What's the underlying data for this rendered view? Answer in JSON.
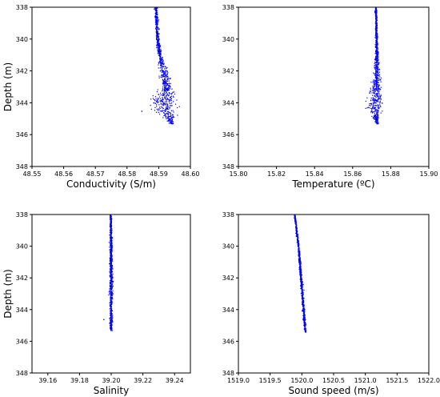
{
  "chart_data": [
    {
      "type": "scatter",
      "xlabel": "Conductivity (S/m)",
      "ylabel": "Depth (m)",
      "xlim": [
        48.55,
        48.6
      ],
      "ylim": [
        348,
        338
      ],
      "xticks": [
        "48.55",
        "48.56",
        "48.57",
        "48.58",
        "48.59",
        "48.60"
      ],
      "yticks": [
        "338",
        "340",
        "342",
        "344",
        "346",
        "348"
      ],
      "color": "#0000ff",
      "profile": [
        {
          "depth": 338.0,
          "x": 48.589,
          "spread": 0.0003
        },
        {
          "depth": 339.0,
          "x": 48.5892,
          "spread": 0.0004
        },
        {
          "depth": 340.0,
          "x": 48.5895,
          "spread": 0.0004
        },
        {
          "depth": 341.0,
          "x": 48.5902,
          "spread": 0.0005
        },
        {
          "depth": 341.5,
          "x": 48.5908,
          "spread": 0.0008
        },
        {
          "depth": 342.0,
          "x": 48.5915,
          "spread": 0.001
        },
        {
          "depth": 343.0,
          "x": 48.5925,
          "spread": 0.0012
        },
        {
          "depth": 343.5,
          "x": 48.5918,
          "spread": 0.0025
        },
        {
          "depth": 344.0,
          "x": 48.5912,
          "spread": 0.0032
        },
        {
          "depth": 344.5,
          "x": 48.592,
          "spread": 0.0025
        },
        {
          "depth": 345.0,
          "x": 48.5935,
          "spread": 0.001
        },
        {
          "depth": 345.3,
          "x": 48.594,
          "spread": 0.0006
        }
      ],
      "outliers": [
        {
          "x": 48.5845,
          "depth": 344.5
        }
      ]
    },
    {
      "type": "scatter",
      "xlabel": "Temperature (ºC)",
      "ylabel": "",
      "xlim": [
        15.8,
        15.9
      ],
      "ylim": [
        348,
        338
      ],
      "xticks": [
        "15.80",
        "15.82",
        "15.84",
        "15.86",
        "15.88",
        "15.90"
      ],
      "yticks": [
        "338",
        "340",
        "342",
        "344",
        "346",
        "348"
      ],
      "color": "#0000ff",
      "profile": [
        {
          "depth": 338.0,
          "x": 15.872,
          "spread": 0.0003
        },
        {
          "depth": 339.0,
          "x": 15.8722,
          "spread": 0.0004
        },
        {
          "depth": 340.0,
          "x": 15.8723,
          "spread": 0.0005
        },
        {
          "depth": 341.0,
          "x": 15.8724,
          "spread": 0.0007
        },
        {
          "depth": 342.0,
          "x": 15.8725,
          "spread": 0.0012
        },
        {
          "depth": 343.0,
          "x": 15.8722,
          "spread": 0.0018
        },
        {
          "depth": 343.7,
          "x": 15.8715,
          "spread": 0.003
        },
        {
          "depth": 344.3,
          "x": 15.8712,
          "spread": 0.003
        },
        {
          "depth": 345.0,
          "x": 15.8722,
          "spread": 0.001
        },
        {
          "depth": 345.3,
          "x": 15.8725,
          "spread": 0.0006
        }
      ],
      "outliers": []
    },
    {
      "type": "scatter",
      "xlabel": "Salinity",
      "ylabel": "Depth (m)",
      "xlim": [
        39.15,
        39.25
      ],
      "ylim": [
        348,
        338
      ],
      "xticks": [
        "39.16",
        "39.18",
        "39.20",
        "39.22",
        "39.24"
      ],
      "yticks": [
        "338",
        "340",
        "342",
        "344",
        "346",
        "348"
      ],
      "color": "#0000ff",
      "profile": [
        {
          "depth": 338.0,
          "x": 39.1995,
          "spread": 0.0005
        },
        {
          "depth": 340.0,
          "x": 39.1996,
          "spread": 0.0006
        },
        {
          "depth": 342.0,
          "x": 39.1997,
          "spread": 0.0007
        },
        {
          "depth": 344.0,
          "x": 39.1997,
          "spread": 0.0008
        },
        {
          "depth": 345.3,
          "x": 39.1996,
          "spread": 0.0006
        }
      ],
      "outliers": [
        {
          "x": 39.195,
          "depth": 344.6
        }
      ]
    },
    {
      "type": "scatter",
      "xlabel": "Sound speed (m/s)",
      "ylabel": "",
      "xlim": [
        1519.0,
        1522.0
      ],
      "ylim": [
        348,
        338
      ],
      "xticks": [
        "1519.0",
        "1519.5",
        "1520.0",
        "1520.5",
        "1521.0",
        "1521.5",
        "1522.0"
      ],
      "yticks": [
        "338",
        "340",
        "342",
        "344",
        "346",
        "348"
      ],
      "color": "#0000ff",
      "profile": [
        {
          "depth": 338.0,
          "x": 1519.88,
          "spread": 0.008
        },
        {
          "depth": 339.0,
          "x": 1519.91,
          "spread": 0.01
        },
        {
          "depth": 340.0,
          "x": 1519.94,
          "spread": 0.01
        },
        {
          "depth": 341.0,
          "x": 1519.96,
          "spread": 0.012
        },
        {
          "depth": 342.0,
          "x": 1519.98,
          "spread": 0.012
        },
        {
          "depth": 343.0,
          "x": 1520.0,
          "spread": 0.014
        },
        {
          "depth": 344.0,
          "x": 1520.02,
          "spread": 0.014
        },
        {
          "depth": 345.0,
          "x": 1520.04,
          "spread": 0.012
        },
        {
          "depth": 345.4,
          "x": 1520.05,
          "spread": 0.01
        }
      ],
      "outliers": []
    }
  ]
}
